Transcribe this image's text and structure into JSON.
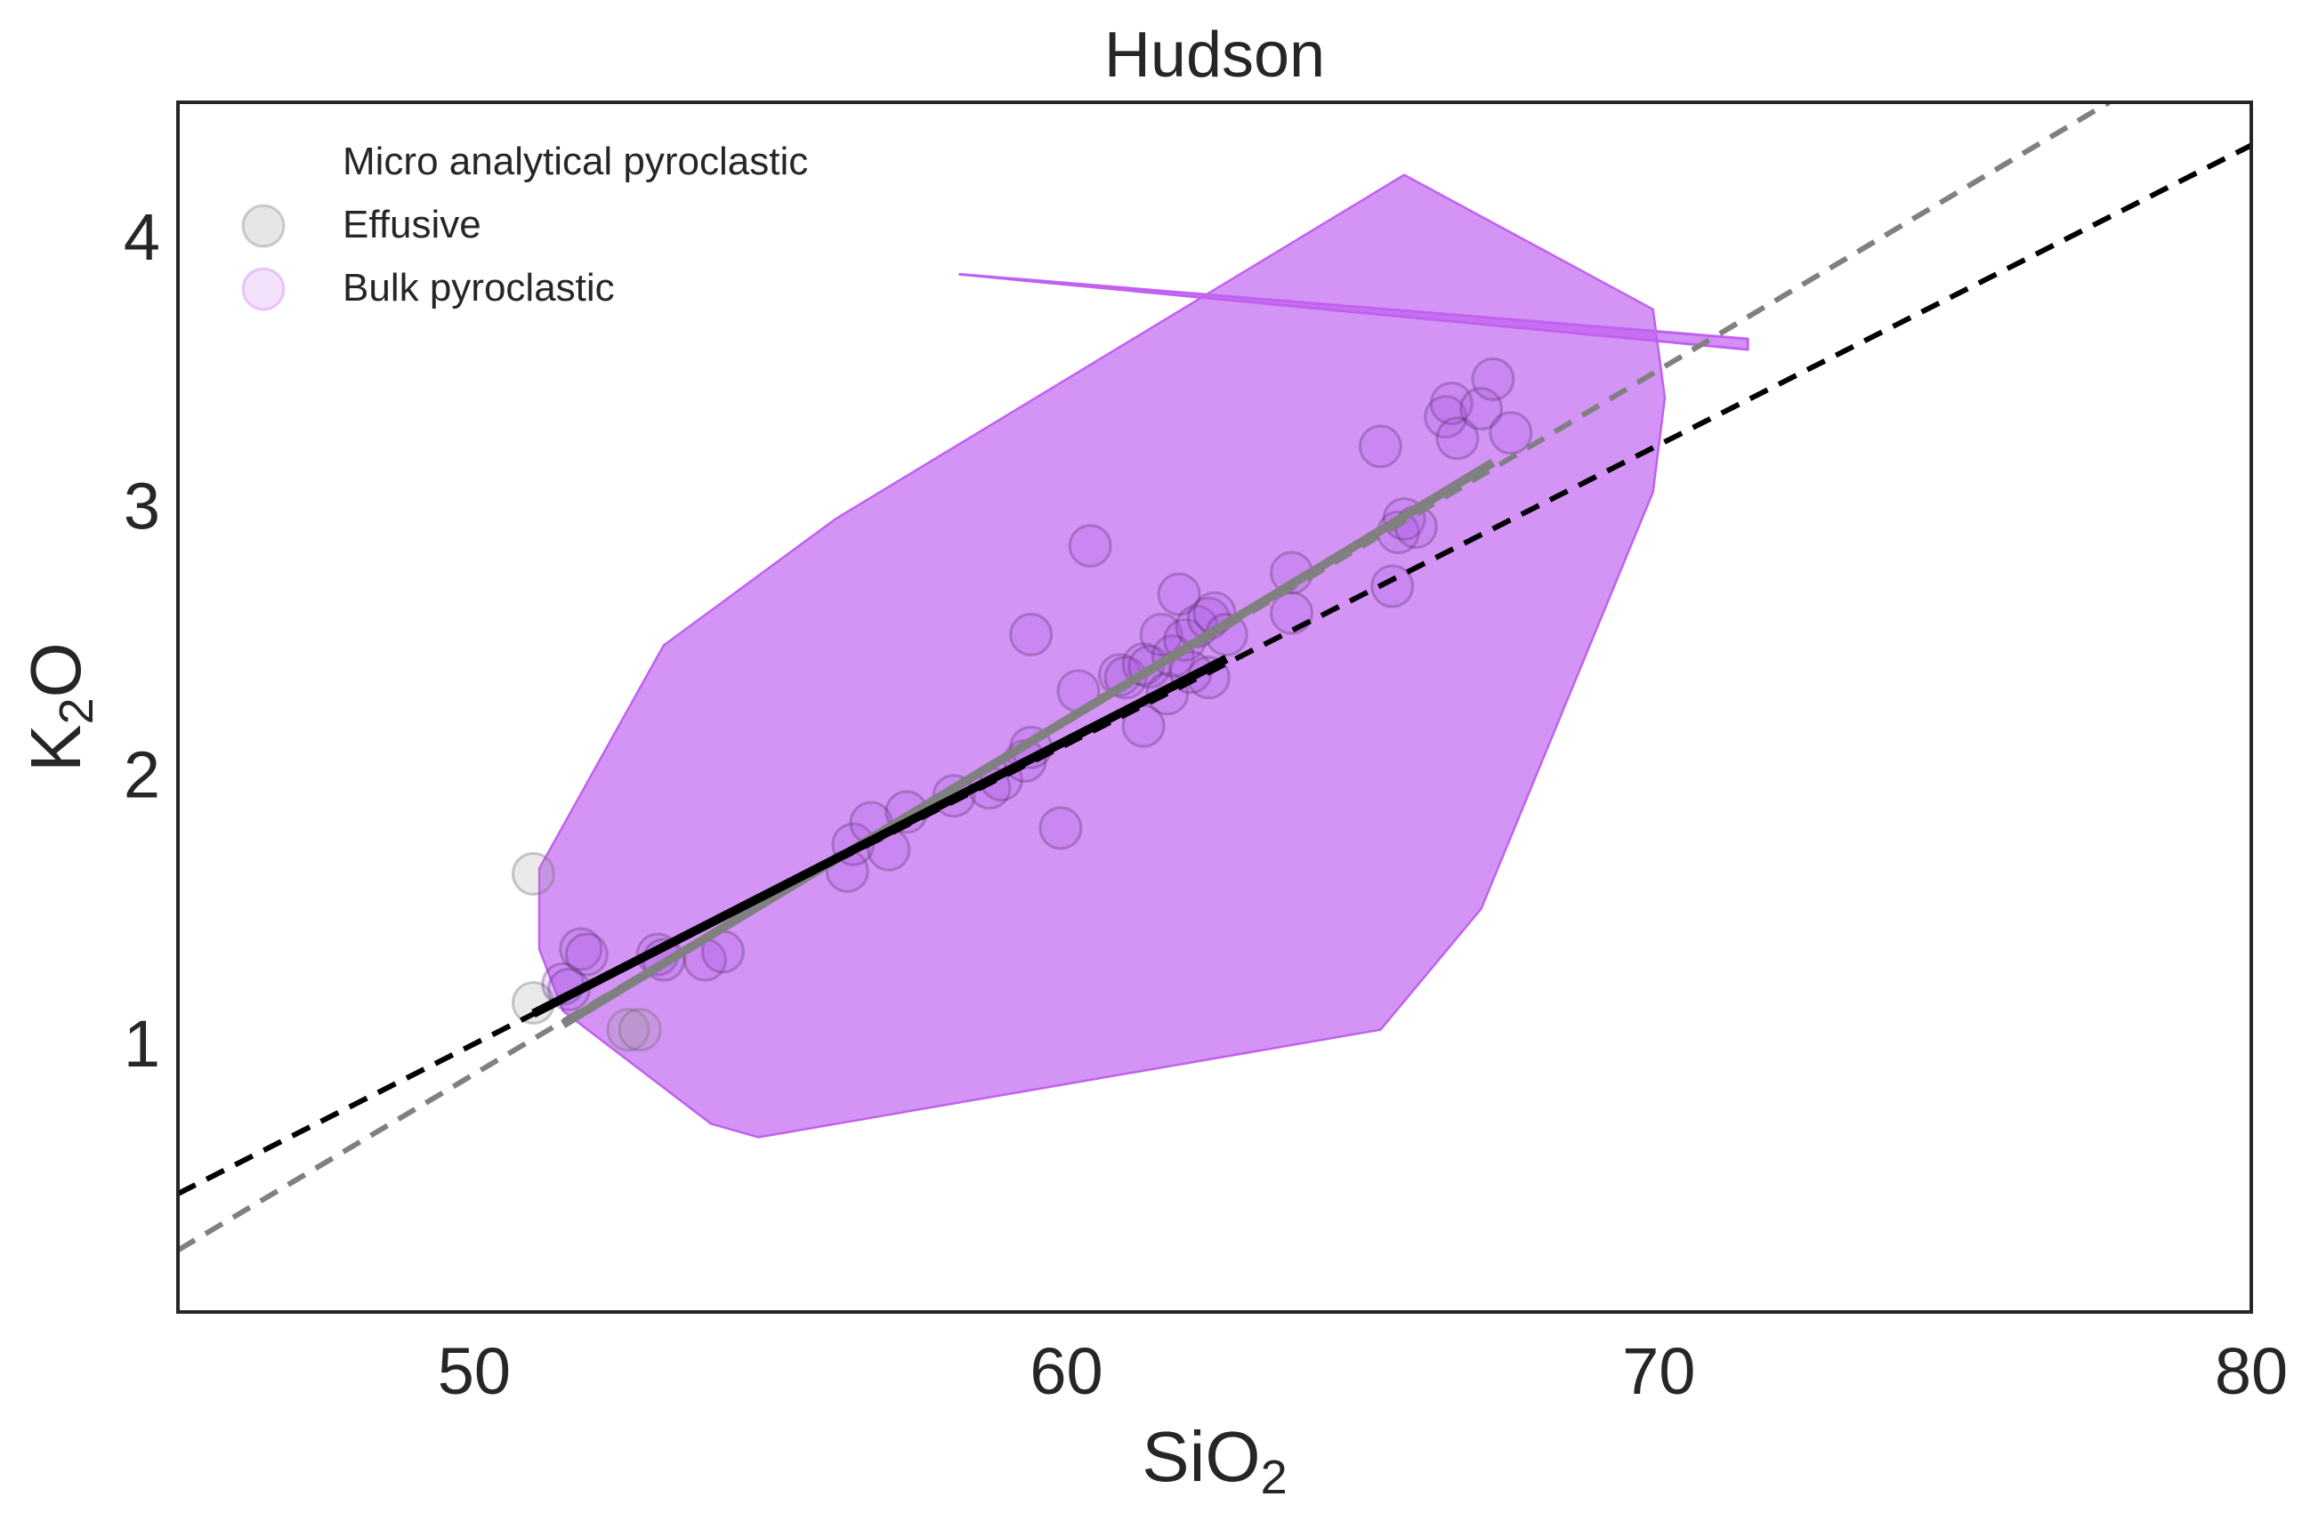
{
  "colors": {
    "bulk_pyroclastic": "#c061f0",
    "effusive_marker": "#9a9a9a",
    "micro_marker": "#a64ee0",
    "fit_black": "#000000",
    "fit_gray": "#808080",
    "axes": "#262626"
  },
  "chart_data": {
    "type": "scatter",
    "title": "Hudson",
    "xlabel": {
      "main": "SiO",
      "sub": "2"
    },
    "ylabel": {
      "main": "K",
      "sub": "2",
      "tail": "O"
    },
    "xlim": [
      45,
      80
    ],
    "ylim": [
      0,
      4.5
    ],
    "x_ticks": [
      50,
      60,
      70,
      80
    ],
    "x_tick_labels": [
      "50",
      "60",
      "70",
      "80"
    ],
    "y_ticks": [
      1,
      2,
      3,
      4
    ],
    "y_tick_labels": [
      "1",
      "2",
      "3",
      "4"
    ],
    "grid": false,
    "legend_position": "top-left",
    "legend": [
      {
        "label": "Micro analytical pyroclastic",
        "marker": "none"
      },
      {
        "label": "Effusive",
        "marker": "circle-gray"
      },
      {
        "label": "Bulk pyroclastic",
        "marker": "circle-purple"
      }
    ],
    "series": [
      {
        "name": "Effusive",
        "kind": "points",
        "points": [
          [
            51.0,
            1.63
          ],
          [
            51.0,
            1.15
          ],
          [
            52.6,
            1.05
          ],
          [
            52.8,
            1.05
          ]
        ]
      },
      {
        "name": "Micro analytical pyroclastic",
        "kind": "points",
        "points": [
          [
            51.5,
            1.22
          ],
          [
            51.6,
            1.2
          ],
          [
            51.8,
            1.35
          ],
          [
            51.9,
            1.33
          ],
          [
            53.1,
            1.33
          ],
          [
            53.2,
            1.31
          ],
          [
            53.9,
            1.31
          ],
          [
            54.2,
            1.34
          ],
          [
            56.3,
            1.64
          ],
          [
            56.4,
            1.74
          ],
          [
            56.7,
            1.82
          ],
          [
            57.0,
            1.72
          ],
          [
            57.3,
            1.86
          ],
          [
            58.1,
            1.92
          ],
          [
            58.7,
            1.95
          ],
          [
            58.9,
            1.98
          ],
          [
            59.3,
            2.05
          ],
          [
            59.4,
            2.1
          ],
          [
            59.9,
            1.8
          ],
          [
            59.4,
            2.52
          ],
          [
            60.2,
            2.31
          ],
          [
            60.4,
            2.85
          ],
          [
            60.9,
            2.37
          ],
          [
            61.0,
            2.36
          ],
          [
            61.3,
            2.18
          ],
          [
            61.3,
            2.41
          ],
          [
            61.4,
            2.4
          ],
          [
            61.6,
            2.52
          ],
          [
            61.7,
            2.3
          ],
          [
            61.8,
            2.44
          ],
          [
            61.9,
            2.67
          ],
          [
            62.0,
            2.5
          ],
          [
            62.1,
            2.38
          ],
          [
            62.2,
            2.55
          ],
          [
            62.4,
            2.58
          ],
          [
            62.4,
            2.36
          ],
          [
            62.5,
            2.6
          ],
          [
            62.7,
            2.52
          ],
          [
            63.8,
            2.75
          ],
          [
            63.8,
            2.6
          ],
          [
            65.3,
            3.22
          ],
          [
            65.5,
            2.7
          ],
          [
            65.6,
            2.9
          ],
          [
            65.7,
            2.95
          ],
          [
            65.9,
            2.92
          ],
          [
            66.4,
            3.33
          ],
          [
            66.5,
            3.38
          ],
          [
            66.6,
            3.25
          ],
          [
            67.0,
            3.36
          ],
          [
            67.2,
            3.47
          ],
          [
            67.5,
            3.27
          ]
        ]
      },
      {
        "name": "Bulk pyroclastic",
        "kind": "hull",
        "points": [
          [
            51.1,
            1.65
          ],
          [
            53.2,
            2.48
          ],
          [
            56.1,
            2.95
          ],
          [
            65.7,
            4.23
          ],
          [
            69.9,
            3.73
          ],
          [
            70.1,
            3.4
          ],
          [
            69.9,
            3.05
          ],
          [
            67.0,
            1.5
          ],
          [
            65.3,
            1.05
          ],
          [
            54.8,
            0.65
          ],
          [
            54.0,
            0.7
          ],
          [
            51.5,
            1.12
          ],
          [
            51.1,
            1.35
          ]
        ]
      },
      {
        "name": "Bulk pyroclastic trend",
        "kind": "sliver",
        "points": [
          [
            58.2,
            3.86
          ],
          [
            71.5,
            3.62
          ],
          [
            71.5,
            3.58
          ]
        ]
      },
      {
        "name": "Micro analytical pyroclastic fit",
        "kind": "line",
        "style": "solid-black",
        "points": [
          [
            51.0,
            1.11
          ],
          [
            62.7,
            2.43
          ]
        ]
      },
      {
        "name": "Effusive fit",
        "kind": "line",
        "style": "solid-gray",
        "points": [
          [
            51.5,
            1.07
          ],
          [
            67.2,
            3.16
          ]
        ]
      },
      {
        "name": "Micro analytical pyroclastic fit extrapolated",
        "kind": "line",
        "style": "dashed-black",
        "points": [
          [
            45.0,
            0.44
          ],
          [
            80.0,
            4.34
          ]
        ]
      },
      {
        "name": "Effusive fit extrapolated",
        "kind": "line",
        "style": "dashed-gray",
        "points": [
          [
            45.0,
            0.23
          ],
          [
            77.6,
            4.5
          ]
        ]
      }
    ]
  }
}
